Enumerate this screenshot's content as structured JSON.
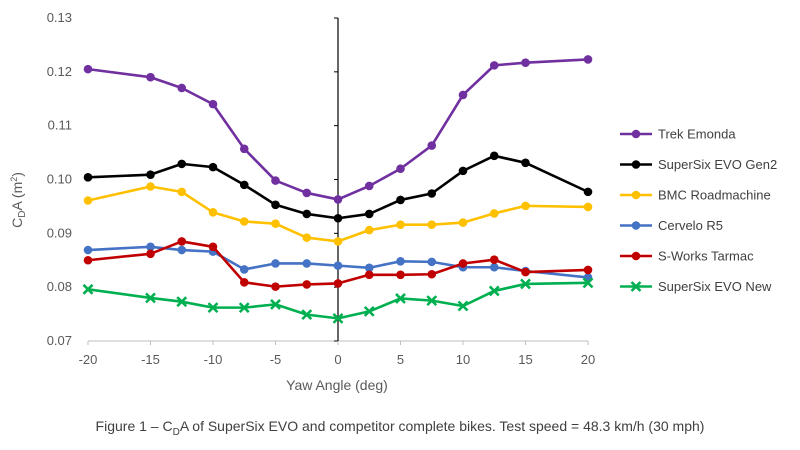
{
  "chart_data": {
    "type": "line",
    "xlabel": "Yaw Angle (deg)",
    "ylabel_main": "C",
    "ylabel_sub": "D",
    "ylabel_rest": "A (m",
    "ylabel_sup": "2",
    "ylabel_end": ")",
    "xlim": [
      -20,
      20
    ],
    "ylim": [
      0.07,
      0.13
    ],
    "xticks": [
      -20,
      -15,
      -10,
      -5,
      0,
      5,
      10,
      15,
      20
    ],
    "xtick_labels": [
      "-20",
      "-15",
      "-10",
      "-5",
      "0",
      "5",
      "10",
      "15",
      "20"
    ],
    "yticks": [
      0.07,
      0.08,
      0.09,
      0.1,
      0.11,
      0.12,
      0.13
    ],
    "ytick_labels": [
      "0.07",
      "0.08",
      "0.09",
      "0.10",
      "0.11",
      "0.12",
      "0.13"
    ],
    "grid": false,
    "legend_position": "right",
    "x": [
      -20,
      -15,
      -12.5,
      -10,
      -7.5,
      -5,
      -2.5,
      0,
      2.5,
      5,
      7.5,
      10,
      12.5,
      15,
      20
    ],
    "series": [
      {
        "name": "Trek Emonda",
        "color": "#7030a0",
        "marker": "circle",
        "values": [
          0.1205,
          0.119,
          0.117,
          0.114,
          0.1057,
          0.0998,
          0.0975,
          0.0963,
          0.0988,
          0.102,
          0.1063,
          0.1157,
          0.1212,
          0.1217,
          0.1223
        ]
      },
      {
        "name": "SuperSix EVO Gen2",
        "color": "#000000",
        "marker": "circle",
        "values": [
          0.1004,
          0.1009,
          0.1029,
          0.1023,
          0.099,
          0.0953,
          0.0936,
          0.0928,
          0.0936,
          0.0962,
          0.0974,
          0.1016,
          0.1044,
          0.1031,
          0.0977
        ]
      },
      {
        "name": "BMC Roadmachine",
        "color": "#ffc000",
        "marker": "circle",
        "values": [
          0.0961,
          0.0987,
          0.0977,
          0.0939,
          0.0922,
          0.0918,
          0.0892,
          0.0885,
          0.0906,
          0.0916,
          0.0916,
          0.092,
          0.0937,
          0.0951,
          0.0949
        ]
      },
      {
        "name": "Cervelo R5",
        "color": "#4472c4",
        "marker": "circle",
        "values": [
          0.0869,
          0.0875,
          0.0869,
          0.0866,
          0.0833,
          0.0844,
          0.0844,
          0.084,
          0.0836,
          0.0848,
          0.0847,
          0.0837,
          0.0837,
          0.083,
          0.0818
        ]
      },
      {
        "name": "S-Works Tarmac",
        "color": "#c00000",
        "marker": "circle",
        "values": [
          0.085,
          0.0862,
          0.0885,
          0.0875,
          0.0809,
          0.0801,
          0.0805,
          0.0807,
          0.0823,
          0.0823,
          0.0824,
          0.0844,
          0.0851,
          0.0828,
          0.0832
        ]
      },
      {
        "name": "SuperSix EVO New",
        "color": "#00b050",
        "marker": "x",
        "values": [
          0.0796,
          0.078,
          0.0773,
          0.0762,
          0.0762,
          0.0768,
          0.0749,
          0.0742,
          0.0755,
          0.0779,
          0.0775,
          0.0765,
          0.0793,
          0.0806,
          0.0808
        ]
      }
    ]
  },
  "caption": {
    "prefix": "Figure 1 – C",
    "sub": "D",
    "suffix": "A of SuperSix EVO and competitor complete bikes. Test speed = 48.3 km/h (30 mph)"
  }
}
